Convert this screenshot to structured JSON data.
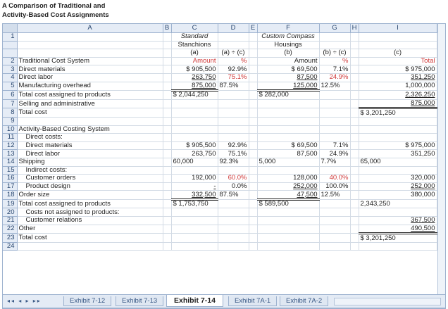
{
  "caption": [
    "A Comparison of Traditional and",
    "Activity-Based Cost Assignments"
  ],
  "columns": [
    "A",
    "B",
    "C",
    "D",
    "E",
    "F",
    "G",
    "H",
    "I"
  ],
  "rows": [
    {
      "n": "1",
      "a": "",
      "c": "Standard",
      "d": "",
      "f": "Custom Compass",
      "g": "",
      "i": ""
    },
    {
      "n": "",
      "a": "",
      "c": "Stanchions",
      "d": "",
      "f": "Housings",
      "g": "",
      "i": ""
    },
    {
      "n": "",
      "a": "",
      "c": "(a)",
      "d": "(a) ÷ (c)",
      "f": "(b)",
      "g": "(b) ÷ (c)",
      "i": "(c)"
    },
    {
      "n": "2",
      "a": "Traditional Cost System",
      "c": "Amount",
      "d": "%",
      "f": "Amount",
      "g": "%",
      "i": "Total"
    },
    {
      "n": "3",
      "a": "Direct materials",
      "c": "$   905,500",
      "d": "92.9%",
      "f": "$        69,500",
      "g": "7.1%",
      "i": "$   975,000"
    },
    {
      "n": "4",
      "a": "Direct labor",
      "c": "263,750",
      "d": "75.1%",
      "f": "87,500",
      "g": "24.9%",
      "i": "351,250"
    },
    {
      "n": "5",
      "a": "Manufacturing overhead",
      "c": "875,000",
      "d": "87.5%",
      "f": "125,000",
      "g": "12.5%",
      "i": "1,000,000"
    },
    {
      "n": "6",
      "a": "Total cost assigned to products",
      "c": "$ 2,044,250",
      "d": "",
      "f": "$       282,000",
      "g": "",
      "i": "2,326,250"
    },
    {
      "n": "7",
      "a": "Selling and administrative",
      "c": "",
      "d": "",
      "f": "",
      "g": "",
      "i": "875,000"
    },
    {
      "n": "8",
      "a": "Total cost",
      "c": "",
      "d": "",
      "f": "",
      "g": "",
      "i": "$  3,201,250"
    },
    {
      "n": "9",
      "a": "",
      "c": "",
      "d": "",
      "f": "",
      "g": "",
      "i": ""
    },
    {
      "n": "10",
      "a": "Activity-Based Costing System",
      "c": "",
      "d": "",
      "f": "",
      "g": "",
      "i": ""
    },
    {
      "n": "11",
      "a": "Direct costs:",
      "c": "",
      "d": "",
      "f": "",
      "g": "",
      "i": ""
    },
    {
      "n": "12",
      "a": "Direct materials",
      "c": "$   905,500",
      "d": "92.9%",
      "f": "$        69,500",
      "g": "7.1%",
      "i": "$   975,000"
    },
    {
      "n": "13",
      "a": "Direct labor",
      "c": "263,750",
      "d": "75.1%",
      "f": "87,500",
      "g": "24.9%",
      "i": "351,250"
    },
    {
      "n": "14",
      "a": "Shipping",
      "c": "60,000",
      "d": "92.3%",
      "f": "5,000",
      "g": "7.7%",
      "i": "65,000"
    },
    {
      "n": "15",
      "a": "Indirect costs:",
      "c": "",
      "d": "",
      "f": "",
      "g": "",
      "i": ""
    },
    {
      "n": "16",
      "a": "Customer orders",
      "c": "192,000",
      "d": "60.0%",
      "f": "128,000",
      "g": "40.0%",
      "i": "320,000"
    },
    {
      "n": "17",
      "a": "Product design",
      "c": "-",
      "d": "0.0%",
      "f": "252,000",
      "g": "100.0%",
      "i": "252,000"
    },
    {
      "n": "18",
      "a": "Order size",
      "c": "332,500",
      "d": "87.5%",
      "f": "47,500",
      "g": "12.5%",
      "i": "380,000"
    },
    {
      "n": "19",
      "a": "Total cost assigned to products",
      "c": "$ 1,753,750",
      "d": "",
      "f": "$       589,500",
      "g": "",
      "i": "2,343,250"
    },
    {
      "n": "20",
      "a": "Costs not assigned to products:",
      "c": "",
      "d": "",
      "f": "",
      "g": "",
      "i": ""
    },
    {
      "n": "21",
      "a": "Customer relations",
      "c": "",
      "d": "",
      "f": "",
      "g": "",
      "i": "367,500"
    },
    {
      "n": "22",
      "a": "Other",
      "c": "",
      "d": "",
      "f": "",
      "g": "",
      "i": "490,500"
    },
    {
      "n": "23",
      "a": "Total cost",
      "c": "",
      "d": "",
      "f": "",
      "g": "",
      "i": "$  3,201,250"
    },
    {
      "n": "24",
      "a": "",
      "c": "",
      "d": "",
      "f": "",
      "g": "",
      "i": ""
    }
  ],
  "tabs": [
    "Exhibit 7-12",
    "Exhibit 7-13",
    "Exhibit 7-14",
    "Exhibit 7A-1",
    "Exhibit 7A-2"
  ],
  "active_tab": "Exhibit 7-14",
  "nav_glyphs": "◂◂ ◂ ▸ ▸▸",
  "colors": {
    "accent_red": "#d03a3a",
    "header_bg": "#e5ecf6",
    "border": "#9db2cf"
  }
}
